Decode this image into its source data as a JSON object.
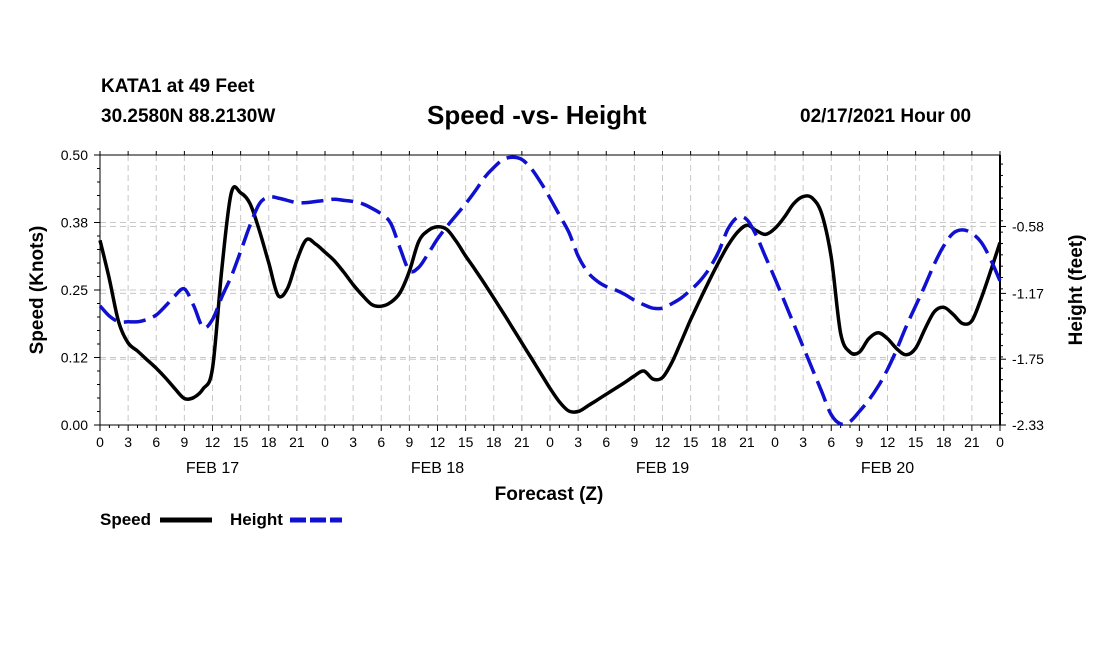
{
  "header": {
    "station": "KATA1 at 49 Feet",
    "coords": "30.2580N 88.2130W",
    "title": "Speed -vs- Height",
    "timestamp": "02/17/2021 Hour 00"
  },
  "chart_data": {
    "type": "line",
    "title": "Speed -vs- Height",
    "xlabel": "Forecast (Z)",
    "ylabel": "Speed (Knots)",
    "y2label": "Height (feet)",
    "x_unit": "forecast hour from FEB 17 00Z",
    "xlim": [
      0,
      96
    ],
    "ylim": [
      0,
      0.5
    ],
    "y2lim": [
      -2.33,
      0.05
    ],
    "grid": true,
    "legend_position": "bottom-left",
    "x_ticks": [
      0,
      3,
      6,
      9,
      12,
      15,
      18,
      21,
      24,
      27,
      30,
      33,
      36,
      39,
      42,
      45,
      48,
      51,
      54,
      57,
      60,
      63,
      66,
      69,
      72,
      75,
      78,
      81,
      84,
      87,
      90,
      93,
      96
    ],
    "x_tick_labels": [
      "0",
      "3",
      "6",
      "9",
      "12",
      "15",
      "18",
      "21",
      "0",
      "3",
      "6",
      "9",
      "12",
      "15",
      "18",
      "21",
      "0",
      "3",
      "6",
      "9",
      "12",
      "15",
      "18",
      "21",
      "0",
      "3",
      "6",
      "9",
      "12",
      "15",
      "18",
      "21",
      "0"
    ],
    "date_labels": [
      {
        "x": 12,
        "label": "FEB 17"
      },
      {
        "x": 36,
        "label": "FEB 18"
      },
      {
        "x": 60,
        "label": "FEB 19"
      },
      {
        "x": 84,
        "label": "FEB 20"
      }
    ],
    "y_ticks": [
      0,
      0.125,
      0.25,
      0.375,
      0.5
    ],
    "y_tick_labels": [
      "0.00",
      "0.12",
      "0.25",
      "0.38",
      "0.50"
    ],
    "y2_ticks": [
      -2.33,
      -1.75,
      -1.17,
      -0.58
    ],
    "y2_tick_labels": [
      "-2.33",
      "-1.75",
      "-1.17",
      "-0.58"
    ],
    "series": [
      {
        "name": "Speed",
        "axis": "left",
        "color": "#000000",
        "style": "solid",
        "x": [
          0,
          1,
          2,
          3,
          4,
          5,
          6,
          7,
          8,
          9,
          10,
          11,
          12,
          13,
          14,
          15,
          16,
          17,
          18,
          19,
          20,
          21,
          22,
          23,
          24,
          25,
          26,
          27,
          28,
          29,
          30,
          31,
          32,
          33,
          34,
          35,
          36,
          37,
          38,
          39,
          40,
          41,
          42,
          43,
          44,
          45,
          46,
          47,
          48,
          49,
          50,
          51,
          52,
          53,
          54,
          55,
          56,
          57,
          58,
          59,
          60,
          61,
          62,
          63,
          64,
          65,
          66,
          67,
          68,
          69,
          70,
          71,
          72,
          73,
          74,
          75,
          76,
          77,
          78,
          79,
          80,
          81,
          82,
          83,
          84,
          85,
          86,
          87,
          88,
          89,
          90,
          91,
          92,
          93,
          94,
          95,
          96
        ],
        "values": [
          0.342,
          0.27,
          0.19,
          0.152,
          0.137,
          0.121,
          0.105,
          0.087,
          0.067,
          0.049,
          0.051,
          0.067,
          0.105,
          0.29,
          0.43,
          0.43,
          0.41,
          0.36,
          0.3,
          0.24,
          0.253,
          0.305,
          0.343,
          0.335,
          0.32,
          0.304,
          0.283,
          0.26,
          0.24,
          0.223,
          0.22,
          0.227,
          0.245,
          0.285,
          0.34,
          0.36,
          0.367,
          0.362,
          0.34,
          0.313,
          0.288,
          0.262,
          0.235,
          0.208,
          0.18,
          0.152,
          0.124,
          0.096,
          0.068,
          0.043,
          0.026,
          0.025,
          0.035,
          0.046,
          0.057,
          0.068,
          0.079,
          0.091,
          0.1,
          0.085,
          0.088,
          0.116,
          0.155,
          0.195,
          0.232,
          0.268,
          0.302,
          0.333,
          0.357,
          0.37,
          0.36,
          0.353,
          0.364,
          0.385,
          0.41,
          0.423,
          0.42,
          0.39,
          0.31,
          0.17,
          0.135,
          0.135,
          0.16,
          0.171,
          0.16,
          0.141,
          0.13,
          0.142,
          0.178,
          0.21,
          0.218,
          0.205,
          0.188,
          0.193,
          0.235,
          0.285,
          0.338
        ]
      },
      {
        "name": "Height",
        "axis": "right",
        "color": "#1010d0",
        "style": "dashed",
        "x": [
          0,
          1,
          2,
          3,
          4,
          5,
          6,
          7,
          8,
          9,
          10,
          11,
          12,
          13,
          14,
          15,
          16,
          17,
          18,
          19,
          20,
          21,
          22,
          23,
          24,
          25,
          26,
          27,
          28,
          29,
          30,
          31,
          32,
          33,
          34,
          35,
          36,
          37,
          38,
          39,
          40,
          41,
          42,
          43,
          44,
          45,
          46,
          47,
          48,
          49,
          50,
          51,
          52,
          53,
          54,
          55,
          56,
          57,
          58,
          59,
          60,
          61,
          62,
          63,
          64,
          65,
          66,
          67,
          68,
          69,
          70,
          71,
          72,
          73,
          74,
          75,
          76,
          77,
          78,
          79,
          80,
          81,
          82,
          83,
          84,
          85,
          86,
          87,
          88,
          89,
          90,
          91,
          92,
          93,
          94,
          95,
          96
        ],
        "values": [
          -1.28,
          -1.37,
          -1.42,
          -1.42,
          -1.42,
          -1.4,
          -1.36,
          -1.28,
          -1.19,
          -1.13,
          -1.28,
          -1.47,
          -1.4,
          -1.2,
          -1.02,
          -0.8,
          -0.57,
          -0.38,
          -0.32,
          -0.33,
          -0.35,
          -0.37,
          -0.37,
          -0.36,
          -0.35,
          -0.34,
          -0.35,
          -0.36,
          -0.38,
          -0.42,
          -0.47,
          -0.55,
          -0.77,
          -0.97,
          -0.94,
          -0.82,
          -0.69,
          -0.58,
          -0.48,
          -0.38,
          -0.27,
          -0.15,
          -0.06,
          0.01,
          0.03,
          0.01,
          -0.07,
          -0.19,
          -0.33,
          -0.48,
          -0.63,
          -0.84,
          -0.98,
          -1.06,
          -1.11,
          -1.14,
          -1.18,
          -1.23,
          -1.27,
          -1.3,
          -1.3,
          -1.26,
          -1.21,
          -1.14,
          -1.06,
          -0.95,
          -0.8,
          -0.6,
          -0.5,
          -0.52,
          -0.66,
          -0.85,
          -1.04,
          -1.24,
          -1.44,
          -1.64,
          -1.84,
          -2.04,
          -2.24,
          -2.32,
          -2.3,
          -2.21,
          -2.11,
          -1.99,
          -1.84,
          -1.66,
          -1.46,
          -1.28,
          -1.1,
          -0.91,
          -0.75,
          -0.64,
          -0.61,
          -0.64,
          -0.72,
          -0.87,
          -1.06
        ]
      }
    ]
  },
  "legend": {
    "speed_label": "Speed",
    "height_label": "Height"
  }
}
